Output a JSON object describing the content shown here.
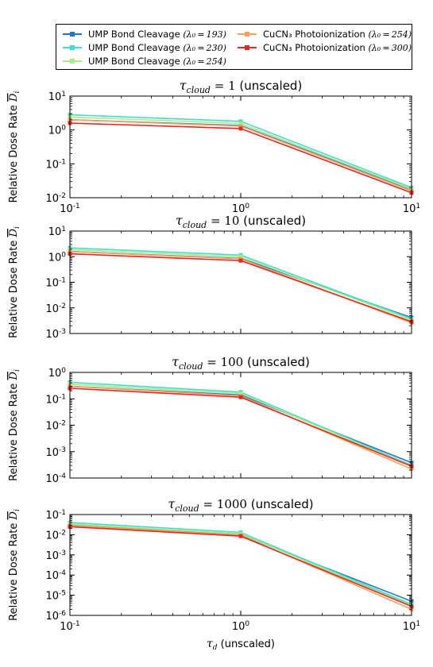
{
  "legend": [
    {
      "label": "UMP Bond Cleavage",
      "lambda": "(λ₀ = 193)",
      "color": "#1f77d0"
    },
    {
      "label": "UMP Bond Cleavage",
      "lambda": "(λ₀ = 230)",
      "color": "#3de0c8"
    },
    {
      "label": "UMP Bond Cleavage",
      "lambda": "(λ₀ = 254)",
      "color": "#a6ec8a"
    },
    {
      "label": "CuCN₃ Photoionization",
      "lambda": "(λ₀ = 254)",
      "color": "#f5a05a"
    },
    {
      "label": "CuCN₃ Photoionization",
      "lambda": "(λ₀ = 300)",
      "color": "#e8271e"
    }
  ],
  "xlabel_sym": "τ",
  "xlabel_sub": "d",
  "xlabel_rest": " (unscaled)",
  "ylabel_text": "Relative Dose Rate ",
  "ylabel_sym": "D",
  "ylabel_sub": "i",
  "chart_data": [
    {
      "type": "line",
      "title_sym": "τ",
      "title_sub": "cloud",
      "title_eq": " = 1",
      "title_rest": " (unscaled)",
      "xscale": "log",
      "yscale": "log",
      "xlim": [
        0.1,
        10
      ],
      "ylim": [
        0.01,
        10
      ],
      "x": [
        0.1,
        1,
        10
      ],
      "xticks": [
        "10-1",
        "100",
        "101"
      ],
      "yticks": [
        "10-2",
        "10-1",
        "100",
        "101"
      ],
      "series": [
        {
          "name": "UMP Bond Cleavage (λ0=193)",
          "values": [
            2.0,
            1.35,
            0.017
          ]
        },
        {
          "name": "UMP Bond Cleavage (λ0=230)",
          "values": [
            2.8,
            1.8,
            0.02
          ]
        },
        {
          "name": "UMP Bond Cleavage (λ0=254)",
          "values": [
            2.4,
            1.55,
            0.018
          ]
        },
        {
          "name": "CuCN3 Photoionization (λ0=254)",
          "values": [
            2.0,
            1.3,
            0.016
          ]
        },
        {
          "name": "CuCN3 Photoionization (λ0=300)",
          "values": [
            1.6,
            1.1,
            0.014
          ]
        }
      ]
    },
    {
      "type": "line",
      "title_sym": "τ",
      "title_sub": "cloud",
      "title_eq": " = 10",
      "title_rest": " (unscaled)",
      "xscale": "log",
      "yscale": "log",
      "xlim": [
        0.1,
        10
      ],
      "ylim": [
        0.001,
        10
      ],
      "x": [
        0.1,
        1,
        10
      ],
      "xticks": [
        "",
        "",
        ""
      ],
      "yticks": [
        "10-3",
        "10-2",
        "10-1",
        "100",
        "101"
      ],
      "series": [
        {
          "name": "UMP Bond Cleavage (λ0=193)",
          "values": [
            1.6,
            0.85,
            0.0042
          ]
        },
        {
          "name": "UMP Bond Cleavage (λ0=230)",
          "values": [
            2.2,
            1.15,
            0.0038
          ]
        },
        {
          "name": "UMP Bond Cleavage (λ0=254)",
          "values": [
            1.9,
            1.0,
            0.0034
          ]
        },
        {
          "name": "CuCN3 Photoionization (λ0=254)",
          "values": [
            1.6,
            0.82,
            0.0026
          ]
        },
        {
          "name": "CuCN3 Photoionization (λ0=300)",
          "values": [
            1.3,
            0.7,
            0.0029
          ]
        }
      ]
    },
    {
      "type": "line",
      "title_sym": "τ",
      "title_sub": "cloud",
      "title_eq": " = 100",
      "title_rest": " (unscaled)",
      "xscale": "log",
      "yscale": "log",
      "xlim": [
        0.1,
        10
      ],
      "ylim": [
        0.0001,
        1
      ],
      "x": [
        0.1,
        1,
        10
      ],
      "xticks": [
        "",
        "",
        ""
      ],
      "yticks": [
        "10-4",
        "10-3",
        "10-2",
        "10-1",
        "100"
      ],
      "series": [
        {
          "name": "UMP Bond Cleavage (λ0=193)",
          "values": [
            0.3,
            0.14,
            0.00038
          ]
        },
        {
          "name": "UMP Bond Cleavage (λ0=230)",
          "values": [
            0.42,
            0.18,
            0.0003
          ]
        },
        {
          "name": "UMP Bond Cleavage (λ0=254)",
          "values": [
            0.36,
            0.16,
            0.00028
          ]
        },
        {
          "name": "CuCN3 Photoionization (λ0=254)",
          "values": [
            0.3,
            0.13,
            0.00022
          ]
        },
        {
          "name": "CuCN3 Photoionization (λ0=300)",
          "values": [
            0.25,
            0.115,
            0.00028
          ]
        }
      ]
    },
    {
      "type": "line",
      "title_sym": "τ",
      "title_sub": "cloud",
      "title_eq": " = 1000",
      "title_rest": " (unscaled)",
      "xscale": "log",
      "yscale": "log",
      "xlim": [
        0.1,
        10
      ],
      "ylim": [
        1e-06,
        0.1
      ],
      "x": [
        0.1,
        1,
        10
      ],
      "xticks": [
        "10-1",
        "100",
        "101"
      ],
      "yticks": [
        "10-6",
        "10-5",
        "10-4",
        "10-3",
        "10-2",
        "10-1"
      ],
      "series": [
        {
          "name": "UMP Bond Cleavage (λ0=193)",
          "values": [
            0.03,
            0.01,
            5e-06
          ]
        },
        {
          "name": "UMP Bond Cleavage (λ0=230)",
          "values": [
            0.04,
            0.013,
            3.5e-06
          ]
        },
        {
          "name": "UMP Bond Cleavage (λ0=254)",
          "values": [
            0.034,
            0.011,
            3e-06
          ]
        },
        {
          "name": "CuCN3 Photoionization (λ0=254)",
          "values": [
            0.029,
            0.0095,
            2e-06
          ]
        },
        {
          "name": "CuCN3 Photoionization (λ0=300)",
          "values": [
            0.025,
            0.0085,
            2.8e-06
          ]
        }
      ]
    }
  ]
}
